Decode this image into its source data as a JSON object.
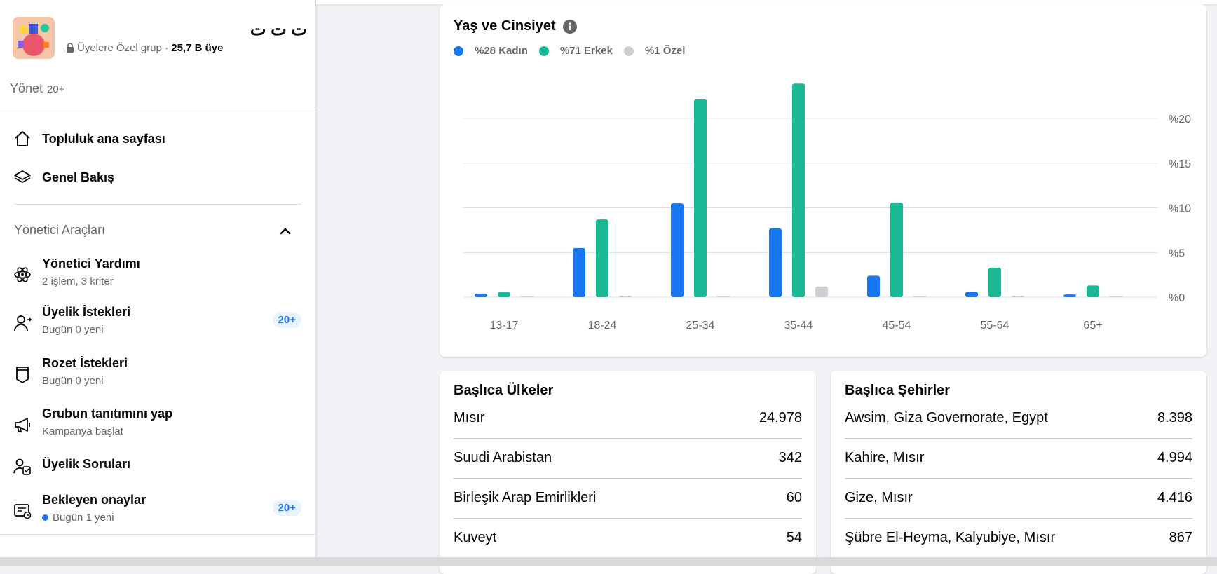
{
  "group": {
    "name": "ت ت ت",
    "privacy": "Üyelere Özel grup",
    "separator": " · ",
    "members": "25,7 B üye"
  },
  "manage": {
    "label": "Yönet",
    "count": "20+"
  },
  "nav": [
    {
      "label": "Topluluk ana sayfası",
      "icon": "home-icon"
    },
    {
      "label": "Genel Bakış",
      "icon": "layers-icon"
    }
  ],
  "admin_tools": {
    "title": "Yönetici Araçları",
    "items": [
      {
        "title": "Yönetici Yardımı",
        "subtitle": "2 işlem, 3 kriter",
        "badge": "",
        "icon": "atom-icon"
      },
      {
        "title": "Üyelik İstekleri",
        "subtitle": "Bugün 0 yeni",
        "badge": "20+",
        "icon": "person-add-icon"
      },
      {
        "title": "Rozet İstekleri",
        "subtitle": "Bugün 0 yeni",
        "badge": "",
        "icon": "badge-icon"
      },
      {
        "title": "Grubun tanıtımını yap",
        "subtitle": "Kampanya başlat",
        "badge": "",
        "icon": "megaphone-icon"
      },
      {
        "title": "Üyelik Soruları",
        "subtitle": "",
        "badge": "",
        "icon": "questions-icon"
      },
      {
        "title": "Bekleyen onaylar",
        "subtitle": "Bugün 1 yeni",
        "badge": "20+",
        "icon": "pending-icon"
      }
    ]
  },
  "chart_data": {
    "type": "bar",
    "title": "Yaş ve Cinsiyet",
    "categories": [
      "13-17",
      "18-24",
      "25-34",
      "35-44",
      "45-54",
      "55-64",
      "65+"
    ],
    "series": [
      {
        "name": "%28 Kadın",
        "color": "#1877f2",
        "values": [
          0.4,
          5.5,
          10.5,
          7.7,
          2.4,
          0.6,
          0.3
        ]
      },
      {
        "name": "%71 Erkek",
        "color": "#1ab996",
        "values": [
          0.6,
          8.7,
          22.2,
          23.9,
          10.6,
          3.3,
          1.3
        ]
      },
      {
        "name": "%1 Özel",
        "color": "#ccd0d5",
        "values": [
          0.05,
          0.1,
          0.15,
          1.2,
          0.05,
          0.02,
          0.02
        ]
      }
    ],
    "yticks": [
      "%0",
      "%5",
      "%10",
      "%15",
      "%20"
    ],
    "ylim": [
      0,
      25
    ]
  },
  "countries": {
    "title": "Başlıca Ülkeler",
    "rows": [
      {
        "name": "Mısır",
        "value": "24.978"
      },
      {
        "name": "Suudi Arabistan",
        "value": "342"
      },
      {
        "name": "Birleşik Arap Emirlikleri",
        "value": "60"
      },
      {
        "name": "Kuveyt",
        "value": "54"
      }
    ]
  },
  "cities": {
    "title": "Başlıca Şehirler",
    "rows": [
      {
        "name": "Awsim, Giza Governorate, Egypt",
        "value": "8.398"
      },
      {
        "name": "Kahire, Mısır",
        "value": "4.994"
      },
      {
        "name": "Gize, Mısır",
        "value": "4.416"
      },
      {
        "name": "Şübre El-Heyma, Kalyubiye, Mısır",
        "value": "867"
      }
    ]
  }
}
